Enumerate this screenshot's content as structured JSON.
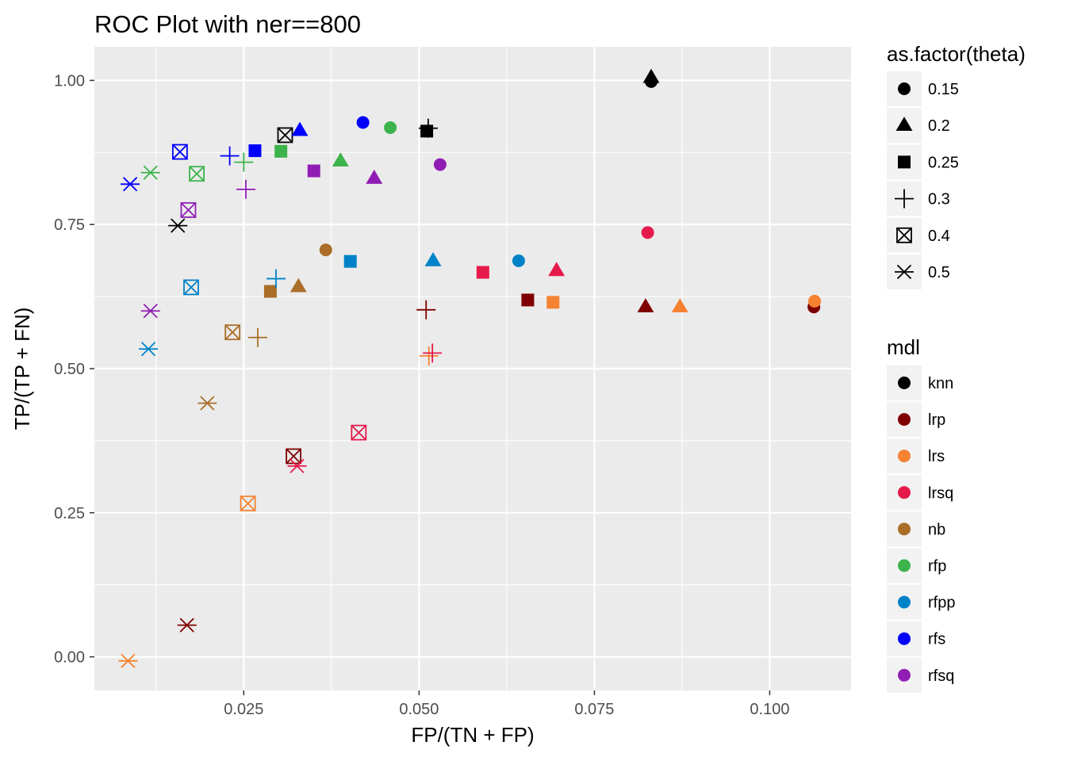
{
  "chart_data": {
    "type": "scatter",
    "title": "ROC Plot with ner==800",
    "xlabel": "FP/(TN + FP)",
    "ylabel": "TP/(TP + FN)",
    "xlim": [
      0.0037,
      0.1116
    ],
    "ylim": [
      -0.0583,
      1.0583
    ],
    "xticks": [
      0.025,
      0.05,
      0.075,
      0.1
    ],
    "xtick_labels": [
      "0.025",
      "0.050",
      "0.075",
      "0.100"
    ],
    "yticks": [
      0.0,
      0.25,
      0.5,
      0.75,
      1.0
    ],
    "ytick_labels": [
      "0.00",
      "0.25",
      "0.50",
      "0.75",
      "1.00"
    ],
    "grid": true,
    "legend_placement": "right",
    "legend_shape": {
      "title": "as.factor(theta)",
      "entries": [
        {
          "label": "0.15",
          "shape": "circle"
        },
        {
          "label": "0.2",
          "shape": "triangle"
        },
        {
          "label": "0.25",
          "shape": "square"
        },
        {
          "label": "0.3",
          "shape": "plus"
        },
        {
          "label": "0.4",
          "shape": "boxcross"
        },
        {
          "label": "0.5",
          "shape": "asterisk"
        }
      ]
    },
    "legend_color": {
      "title": "mdl",
      "entries": [
        {
          "label": "knn",
          "color": "#000000"
        },
        {
          "label": "lrp",
          "color": "#7f0000"
        },
        {
          "label": "lrs",
          "color": "#f58231"
        },
        {
          "label": "lrsq",
          "color": "#e6194b"
        },
        {
          "label": "nb",
          "color": "#aa6e28"
        },
        {
          "label": "rfp",
          "color": "#3cb44b"
        },
        {
          "label": "rfpp",
          "color": "#0082c8"
        },
        {
          "label": "rfs",
          "color": "#0000ff"
        },
        {
          "label": "rfsq",
          "color": "#911eb4"
        }
      ]
    },
    "points": [
      {
        "mdl": "knn",
        "theta": "0.15",
        "x": 0.0831,
        "y": 0.998
      },
      {
        "mdl": "knn",
        "theta": "0.2",
        "x": 0.0831,
        "y": 1.005
      },
      {
        "mdl": "knn",
        "theta": "0.25",
        "x": 0.0511,
        "y": 0.912
      },
      {
        "mdl": "knn",
        "theta": "0.3",
        "x": 0.0513,
        "y": 0.917
      },
      {
        "mdl": "knn",
        "theta": "0.4",
        "x": 0.0309,
        "y": 0.905
      },
      {
        "mdl": "knn",
        "theta": "0.5",
        "x": 0.0156,
        "y": 0.748
      },
      {
        "mdl": "lrp",
        "theta": "0.15",
        "x": 0.1063,
        "y": 0.607
      },
      {
        "mdl": "lrp",
        "theta": "0.2",
        "x": 0.0823,
        "y": 0.607
      },
      {
        "mdl": "lrp",
        "theta": "0.25",
        "x": 0.0655,
        "y": 0.619
      },
      {
        "mdl": "lrp",
        "theta": "0.3",
        "x": 0.051,
        "y": 0.602
      },
      {
        "mdl": "lrp",
        "theta": "0.4",
        "x": 0.0321,
        "y": 0.348
      },
      {
        "mdl": "lrp",
        "theta": "0.5",
        "x": 0.0169,
        "y": 0.055
      },
      {
        "mdl": "lrs",
        "theta": "0.15",
        "x": 0.1064,
        "y": 0.617
      },
      {
        "mdl": "lrs",
        "theta": "0.2",
        "x": 0.0872,
        "y": 0.607
      },
      {
        "mdl": "lrs",
        "theta": "0.25",
        "x": 0.0691,
        "y": 0.615
      },
      {
        "mdl": "lrs",
        "theta": "0.3",
        "x": 0.0514,
        "y": 0.522
      },
      {
        "mdl": "lrs",
        "theta": "0.4",
        "x": 0.0256,
        "y": 0.266
      },
      {
        "mdl": "lrs",
        "theta": "0.5",
        "x": 0.0085,
        "y": -0.007
      },
      {
        "mdl": "lrsq",
        "theta": "0.15",
        "x": 0.0826,
        "y": 0.736
      },
      {
        "mdl": "lrsq",
        "theta": "0.2",
        "x": 0.0696,
        "y": 0.67
      },
      {
        "mdl": "lrsq",
        "theta": "0.25",
        "x": 0.0591,
        "y": 0.667
      },
      {
        "mdl": "lrsq",
        "theta": "0.3",
        "x": 0.0519,
        "y": 0.527
      },
      {
        "mdl": "lrsq",
        "theta": "0.4",
        "x": 0.0414,
        "y": 0.389
      },
      {
        "mdl": "lrsq",
        "theta": "0.5",
        "x": 0.0326,
        "y": 0.331
      },
      {
        "mdl": "nb",
        "theta": "0.15",
        "x": 0.0367,
        "y": 0.706
      },
      {
        "mdl": "nb",
        "theta": "0.2",
        "x": 0.0328,
        "y": 0.642
      },
      {
        "mdl": "nb",
        "theta": "0.25",
        "x": 0.0288,
        "y": 0.634
      },
      {
        "mdl": "nb",
        "theta": "0.3",
        "x": 0.027,
        "y": 0.554
      },
      {
        "mdl": "nb",
        "theta": "0.4",
        "x": 0.0234,
        "y": 0.563
      },
      {
        "mdl": "nb",
        "theta": "0.5",
        "x": 0.0198,
        "y": 0.44
      },
      {
        "mdl": "rfp",
        "theta": "0.15",
        "x": 0.0459,
        "y": 0.918
      },
      {
        "mdl": "rfp",
        "theta": "0.2",
        "x": 0.0388,
        "y": 0.86
      },
      {
        "mdl": "rfp",
        "theta": "0.25",
        "x": 0.0303,
        "y": 0.877
      },
      {
        "mdl": "rfp",
        "theta": "0.3",
        "x": 0.025,
        "y": 0.858
      },
      {
        "mdl": "rfp",
        "theta": "0.4",
        "x": 0.0183,
        "y": 0.838
      },
      {
        "mdl": "rfp",
        "theta": "0.5",
        "x": 0.0117,
        "y": 0.84
      },
      {
        "mdl": "rfpp",
        "theta": "0.15",
        "x": 0.0642,
        "y": 0.687
      },
      {
        "mdl": "rfpp",
        "theta": "0.2",
        "x": 0.052,
        "y": 0.687
      },
      {
        "mdl": "rfpp",
        "theta": "0.25",
        "x": 0.0402,
        "y": 0.686
      },
      {
        "mdl": "rfpp",
        "theta": "0.3",
        "x": 0.0296,
        "y": 0.656
      },
      {
        "mdl": "rfpp",
        "theta": "0.4",
        "x": 0.0175,
        "y": 0.641
      },
      {
        "mdl": "rfpp",
        "theta": "0.5",
        "x": 0.0114,
        "y": 0.534
      },
      {
        "mdl": "rfs",
        "theta": "0.15",
        "x": 0.042,
        "y": 0.927
      },
      {
        "mdl": "rfs",
        "theta": "0.2",
        "x": 0.033,
        "y": 0.913
      },
      {
        "mdl": "rfs",
        "theta": "0.25",
        "x": 0.0266,
        "y": 0.878
      },
      {
        "mdl": "rfs",
        "theta": "0.3",
        "x": 0.023,
        "y": 0.869
      },
      {
        "mdl": "rfs",
        "theta": "0.4",
        "x": 0.0159,
        "y": 0.876
      },
      {
        "mdl": "rfs",
        "theta": "0.5",
        "x": 0.0088,
        "y": 0.82
      },
      {
        "mdl": "rfsq",
        "theta": "0.15",
        "x": 0.053,
        "y": 0.854
      },
      {
        "mdl": "rfsq",
        "theta": "0.2",
        "x": 0.0436,
        "y": 0.83
      },
      {
        "mdl": "rfsq",
        "theta": "0.25",
        "x": 0.035,
        "y": 0.843
      },
      {
        "mdl": "rfsq",
        "theta": "0.3",
        "x": 0.0253,
        "y": 0.811
      },
      {
        "mdl": "rfsq",
        "theta": "0.4",
        "x": 0.0171,
        "y": 0.775
      },
      {
        "mdl": "rfsq",
        "theta": "0.5",
        "x": 0.0117,
        "y": 0.6
      }
    ]
  }
}
